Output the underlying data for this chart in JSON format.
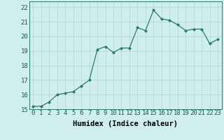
{
  "x": [
    0,
    1,
    2,
    3,
    4,
    5,
    6,
    7,
    8,
    9,
    10,
    11,
    12,
    13,
    14,
    15,
    16,
    17,
    18,
    19,
    20,
    21,
    22,
    23
  ],
  "y": [
    15.2,
    15.2,
    15.5,
    16.0,
    16.1,
    16.2,
    16.6,
    17.0,
    19.1,
    19.3,
    18.9,
    19.2,
    19.2,
    20.6,
    20.4,
    21.8,
    21.2,
    21.1,
    20.8,
    20.4,
    20.5,
    20.5,
    19.5,
    19.8
  ],
  "line_color": "#2a7a6a",
  "marker": "D",
  "marker_size": 2.0,
  "bg_color": "#d0eeeb",
  "grid_color": "#b0d8d4",
  "xlabel": "Humidex (Indice chaleur)",
  "ylim": [
    15,
    22.4
  ],
  "xlim": [
    -0.5,
    23.5
  ],
  "yticks": [
    15,
    16,
    17,
    18,
    19,
    20,
    21,
    22
  ],
  "xtick_labels": [
    "0",
    "1",
    "2",
    "3",
    "4",
    "5",
    "6",
    "7",
    "8",
    "9",
    "10",
    "11",
    "12",
    "13",
    "14",
    "15",
    "16",
    "17",
    "18",
    "19",
    "20",
    "21",
    "22",
    "23"
  ],
  "font_size": 6.5,
  "xlabel_fontsize": 7.5
}
